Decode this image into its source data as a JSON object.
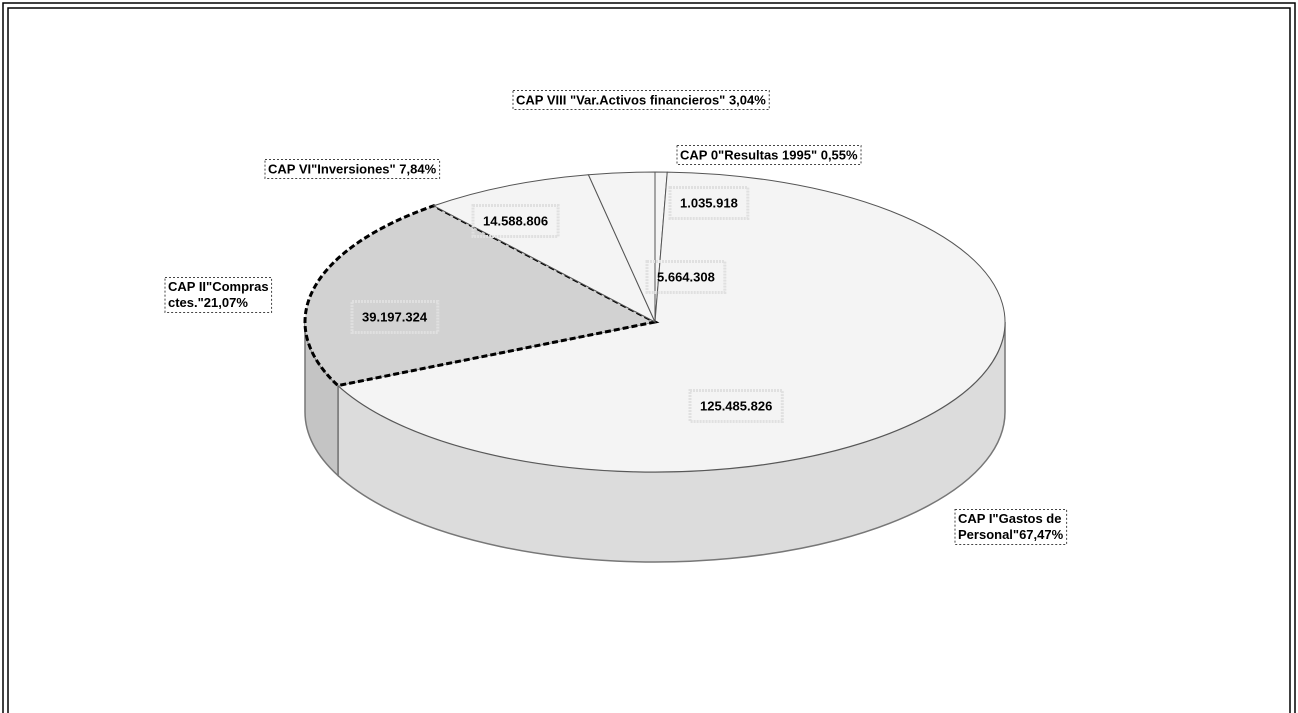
{
  "chart_data": {
    "type": "pie3d",
    "categories": [
      "CAP 0\"Resultas 1995\" 0,55%",
      "CAP I\"Gastos de\nPersonal\"67,47%",
      "CAP II\"Compras\nctes.\"21,07%",
      "CAP VI\"Inversiones\" 7,84%",
      "CAP VIII \"Var.Activos financieros\" 3,04%"
    ],
    "values": [
      1035918,
      125485826,
      39197324,
      14588806,
      5664308
    ],
    "value_labels": [
      "1.035.918",
      "125.485.826",
      "39.197.324",
      "14.588.806",
      "5.664.308"
    ],
    "colors": [
      "#f4f4f4",
      "#f4f4f4",
      "#d2d2d2",
      "#f4f4f4",
      "#f4f4f4"
    ]
  }
}
